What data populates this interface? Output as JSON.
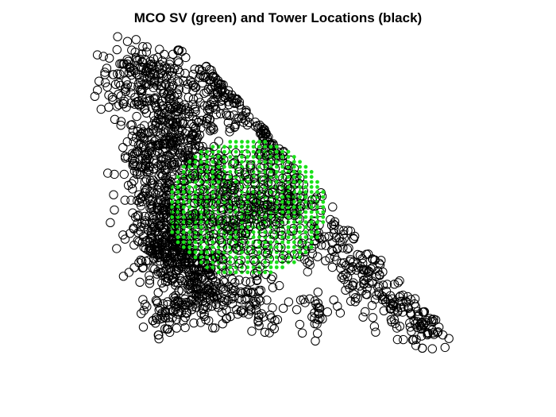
{
  "chart_data": {
    "type": "scatter",
    "title": "MCO SV (green) and Tower Locations (black)",
    "xlabel": "",
    "ylabel": "",
    "axes_visible": false,
    "grid": false,
    "legend": "none",
    "xlim": [
      0,
      100
    ],
    "ylim": [
      0,
      100
    ],
    "colors": {
      "towers": "#000000",
      "sv": "#1be01b"
    },
    "series": [
      {
        "marker": "open-circle",
        "color": "#000000",
        "points": "towers",
        "regions": [
          {
            "cx": 14,
            "cy": 86,
            "r": 9,
            "n": 200
          },
          {
            "cx": 22,
            "cy": 72,
            "r": 8,
            "n": 170
          },
          {
            "cx": 15,
            "cy": 60,
            "r": 6,
            "n": 90
          },
          {
            "cx": 26,
            "cy": 58,
            "r": 9,
            "n": 150
          },
          {
            "cx": 40,
            "cy": 87,
            "r": 8,
            "n": 110
          },
          {
            "cx": 53,
            "cy": 78,
            "r": 6,
            "n": 70
          },
          {
            "cx": 54,
            "cy": 66,
            "r": 6,
            "n": 60
          },
          {
            "cx": 18,
            "cy": 46,
            "r": 7,
            "n": 140
          },
          {
            "cx": 20,
            "cy": 33,
            "r": 7,
            "n": 230
          },
          {
            "cx": 27,
            "cy": 26,
            "r": 6,
            "n": 130
          },
          {
            "cx": 31,
            "cy": 17,
            "r": 6,
            "n": 120
          },
          {
            "cx": 21,
            "cy": 11,
            "r": 5,
            "n": 70
          },
          {
            "cx": 45,
            "cy": 15,
            "r": 6,
            "n": 60
          },
          {
            "cx": 39,
            "cy": 43,
            "r": 12,
            "n": 200
          },
          {
            "cx": 55,
            "cy": 47,
            "r": 8,
            "n": 90
          },
          {
            "cx": 64,
            "cy": 35,
            "r": 6,
            "n": 60
          },
          {
            "cx": 74,
            "cy": 24,
            "r": 6,
            "n": 70
          },
          {
            "cx": 82,
            "cy": 13,
            "r": 6,
            "n": 70
          },
          {
            "cx": 92,
            "cy": 7,
            "r": 5,
            "n": 50
          },
          {
            "cx": 62,
            "cy": 12,
            "r": 4,
            "n": 30
          }
        ]
      },
      {
        "marker": "filled-dot",
        "color": "#1be01b",
        "points": "sv",
        "center": [
          42,
          45
        ],
        "radius": 22,
        "spacing": 1.6
      }
    ]
  }
}
